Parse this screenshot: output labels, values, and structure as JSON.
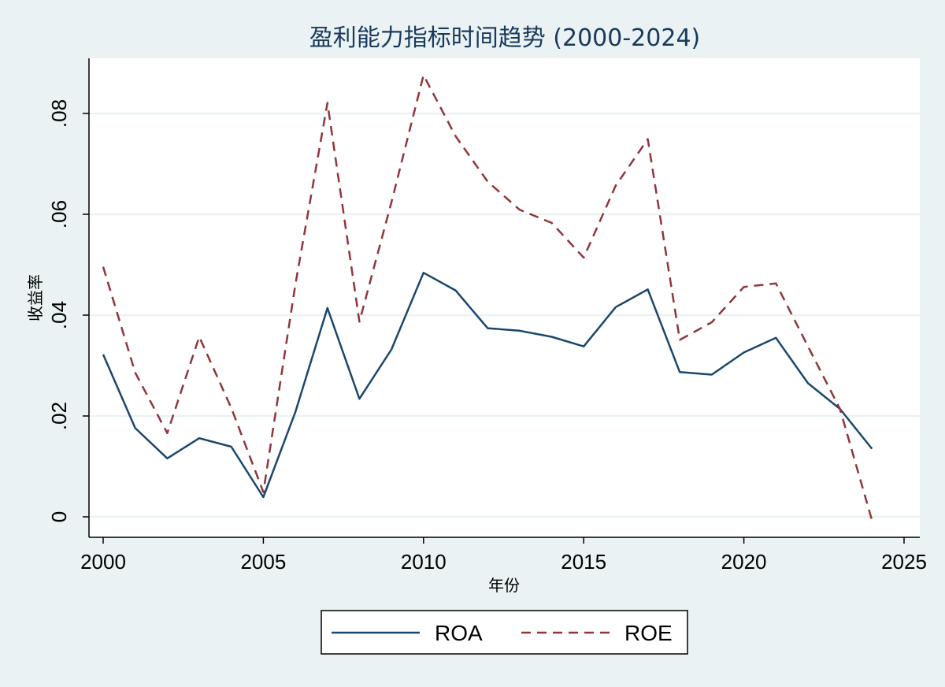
{
  "chart_data": {
    "type": "line",
    "title": "盈利能力指标时间趋势 (2000-2024)",
    "xlabel": "年份",
    "ylabel": "收益率",
    "xlim": [
      2000,
      2025
    ],
    "ylim": [
      0,
      0.09
    ],
    "xticks": [
      2000,
      2005,
      2010,
      2015,
      2020,
      2025
    ],
    "xtick_labels": [
      "2000",
      "2005",
      "2010",
      "2015",
      "2020",
      "2025"
    ],
    "yticks": [
      0,
      0.02,
      0.04,
      0.06,
      0.08
    ],
    "ytick_labels": [
      "0",
      ".02",
      ".04",
      ".06",
      ".08"
    ],
    "grid": true,
    "legend_position": "bottom",
    "x": [
      2000,
      2001,
      2002,
      2003,
      2004,
      2005,
      2006,
      2007,
      2008,
      2009,
      2010,
      2011,
      2012,
      2013,
      2014,
      2015,
      2016,
      2017,
      2018,
      2019,
      2020,
      2021,
      2022,
      2023,
      2024
    ],
    "series": [
      {
        "name": "ROA",
        "color": "#1a476f",
        "dash": "solid",
        "values": [
          0.0322,
          0.0176,
          0.0116,
          0.0156,
          0.0139,
          0.0039,
          0.0208,
          0.0414,
          0.0234,
          0.0332,
          0.0484,
          0.0449,
          0.0374,
          0.0369,
          0.0357,
          0.0338,
          0.0416,
          0.0451,
          0.0287,
          0.0282,
          0.0326,
          0.0355,
          0.0265,
          0.0214,
          0.0135
        ]
      },
      {
        "name": "ROE",
        "color": "#90353b",
        "dash": "dashed",
        "values": [
          0.0496,
          0.0286,
          0.0166,
          0.0357,
          0.0216,
          0.0049,
          0.0461,
          0.0821,
          0.0387,
          0.0624,
          0.0876,
          0.0755,
          0.0665,
          0.0609,
          0.0583,
          0.0514,
          0.0657,
          0.0749,
          0.0351,
          0.0386,
          0.0456,
          0.0463,
          0.0338,
          0.0214,
          -0.0007
        ]
      }
    ]
  }
}
